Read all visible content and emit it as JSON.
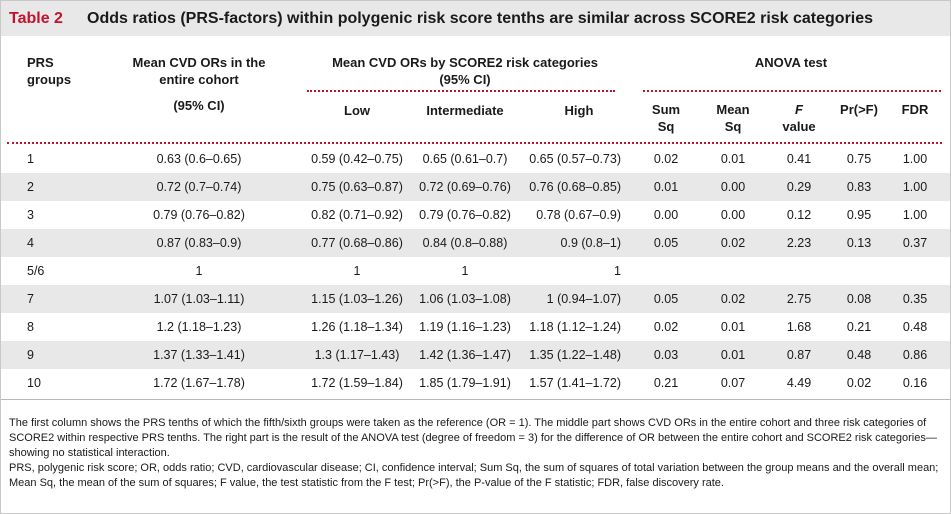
{
  "table": {
    "number": "Table 2",
    "title": "Odds ratios (PRS-factors) within polygenic risk score tenths are similar across SCORE2 risk categories"
  },
  "headers": {
    "prs_line1": "PRS",
    "prs_line2": "groups",
    "cohort_line1": "Mean CVD ORs in the",
    "cohort_line2": "entire cohort",
    "cohort_ci": "(95% CI)",
    "score2_line1": "Mean CVD ORs by SCORE2 risk categories",
    "score2_line2": "(95% CI)",
    "low": "Low",
    "intermediate": "Intermediate",
    "high": "High",
    "anova": "ANOVA test",
    "sumsq_line1": "Sum",
    "sumsq_line2": "Sq",
    "meansq_line1": "Mean",
    "meansq_line2": "Sq",
    "f_line1": "F",
    "f_line2": "value",
    "pr": "Pr(>F)",
    "fdr": "FDR"
  },
  "rows": [
    {
      "group": "1",
      "cohort": "0.63 (0.6–0.65)",
      "low": "0.59 (0.42–0.75)",
      "intermediate": "0.65 (0.61–0.7)",
      "high": "0.65 (0.57–0.73)",
      "sumsq": "0.02",
      "meansq": "0.01",
      "f": "0.41",
      "pr": "0.75",
      "fdr": "1.00"
    },
    {
      "group": "2",
      "cohort": "0.72 (0.7–0.74)",
      "low": "0.75 (0.63–0.87)",
      "intermediate": "0.72 (0.69–0.76)",
      "high": "0.76 (0.68–0.85)",
      "sumsq": "0.01",
      "meansq": "0.00",
      "f": "0.29",
      "pr": "0.83",
      "fdr": "1.00"
    },
    {
      "group": "3",
      "cohort": "0.79 (0.76–0.82)",
      "low": "0.82 (0.71–0.92)",
      "intermediate": "0.79 (0.76–0.82)",
      "high": "0.78 (0.67–0.9)",
      "sumsq": "0.00",
      "meansq": "0.00",
      "f": "0.12",
      "pr": "0.95",
      "fdr": "1.00"
    },
    {
      "group": "4",
      "cohort": "0.87 (0.83–0.9)",
      "low": "0.77 (0.68–0.86)",
      "intermediate": "0.84 (0.8–0.88)",
      "high": "0.9 (0.8–1)",
      "sumsq": "0.05",
      "meansq": "0.02",
      "f": "2.23",
      "pr": "0.13",
      "fdr": "0.37"
    },
    {
      "group": "5/6",
      "cohort": "1",
      "low": "1",
      "intermediate": "1",
      "high": "1",
      "sumsq": "",
      "meansq": "",
      "f": "",
      "pr": "",
      "fdr": ""
    },
    {
      "group": "7",
      "cohort": "1.07 (1.03–1.11)",
      "low": "1.15 (1.03–1.26)",
      "intermediate": "1.06 (1.03–1.08)",
      "high": "1 (0.94–1.07)",
      "sumsq": "0.05",
      "meansq": "0.02",
      "f": "2.75",
      "pr": "0.08",
      "fdr": "0.35"
    },
    {
      "group": "8",
      "cohort": "1.2 (1.18–1.23)",
      "low": "1.26 (1.18–1.34)",
      "intermediate": "1.19 (1.16–1.23)",
      "high": "1.18 (1.12–1.24)",
      "sumsq": "0.02",
      "meansq": "0.01",
      "f": "1.68",
      "pr": "0.21",
      "fdr": "0.48"
    },
    {
      "group": "9",
      "cohort": "1.37 (1.33–1.41)",
      "low": "1.3 (1.17–1.43)",
      "intermediate": "1.42 (1.36–1.47)",
      "high": "1.35 (1.22–1.48)",
      "sumsq": "0.03",
      "meansq": "0.01",
      "f": "0.87",
      "pr": "0.48",
      "fdr": "0.86"
    },
    {
      "group": "10",
      "cohort": "1.72 (1.67–1.78)",
      "low": "1.72 (1.59–1.84)",
      "intermediate": "1.85 (1.79–1.91)",
      "high": "1.57 (1.41–1.72)",
      "sumsq": "0.21",
      "meansq": "0.07",
      "f": "4.49",
      "pr": "0.02",
      "fdr": "0.16"
    }
  ],
  "footnotes": {
    "note1": "The first column shows the PRS tenths of which the fifth/sixth groups were taken as the reference (OR = 1). The middle part shows CVD ORs in the entire cohort and three risk categories of SCORE2 within respective PRS tenths. The right part is the result of the ANOVA test (degree of freedom = 3) for the difference of OR between the entire cohort and SCORE2 risk categories—showing no statistical interaction.",
    "note2": "PRS, polygenic risk score; OR, odds ratio; CVD, cardiovascular disease; CI, confidence interval; Sum Sq, the sum of squares of total variation between the group means and the overall mean; Mean Sq, the mean of the sum of squares; F value, the test statistic from the F test; Pr(>F), the P-value of the F statistic; FDR, false discovery rate."
  },
  "colors": {
    "accent": "#c4122f",
    "band": "#e8e8e8"
  }
}
